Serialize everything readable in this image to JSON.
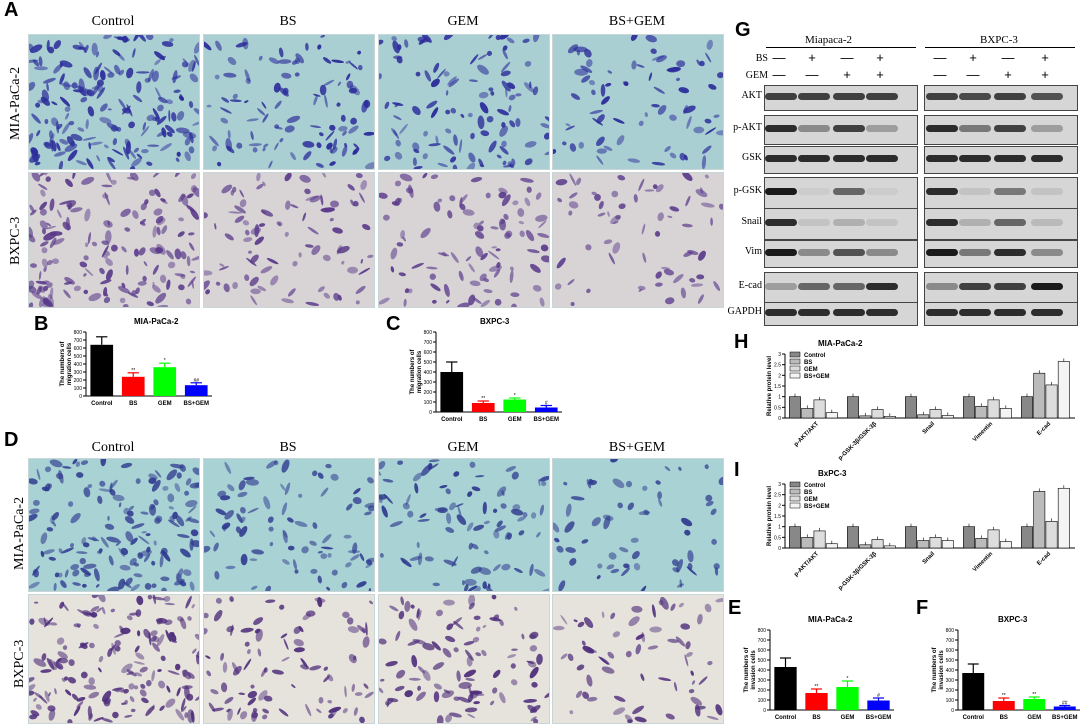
{
  "panel_labels": {
    "A": "A",
    "B": "B",
    "C": "C",
    "D": "D",
    "E": "E",
    "F": "F",
    "G": "G",
    "H": "H",
    "I": "I"
  },
  "micrograph_columns": [
    "Control",
    "BS",
    "GEM",
    "BS+GEM"
  ],
  "micrograph_rows": [
    "MIA-PaCa-2",
    "BXPC-3"
  ],
  "micro_style": {
    "A_top": {
      "bg": "#a9cfd2",
      "cell": "#2a2a9a",
      "density": 0.85
    },
    "A_bottom": {
      "bg": "#d8d4d6",
      "cell": "#5a3a8a",
      "density": 0.75
    },
    "D_top": {
      "bg": "#a8d2d4",
      "cell": "#2f3a8f",
      "density": 0.7
    },
    "D_bottom": {
      "bg": "#e6e2dc",
      "cell": "#4d2d7a",
      "density": 0.7
    }
  },
  "western_blot": {
    "cell_lines": [
      "Miapaca-2",
      "BXPC-3"
    ],
    "treatments": [
      {
        "name": "BS",
        "signs": [
          "—",
          "+",
          "—",
          "+"
        ]
      },
      {
        "name": "GEM",
        "signs": [
          "—",
          "—",
          "+",
          "+"
        ]
      }
    ],
    "proteins": [
      "AKT",
      "p-AKT",
      "GSK",
      "p-GSK",
      "Snail",
      "Vim",
      "E-cad",
      "GAPDH"
    ],
    "intensities": {
      "AKT": [
        [
          0.8,
          0.8,
          0.8,
          0.8
        ],
        [
          0.8,
          0.75,
          0.8,
          0.7
        ]
      ],
      "p-AKT": [
        [
          0.9,
          0.4,
          0.8,
          0.3
        ],
        [
          0.9,
          0.5,
          0.8,
          0.3
        ]
      ],
      "GSK": [
        [
          0.9,
          0.9,
          0.9,
          0.9
        ],
        [
          0.9,
          0.9,
          0.9,
          0.9
        ]
      ],
      "p-GSK": [
        [
          1.0,
          0.05,
          0.6,
          0.05
        ],
        [
          0.9,
          0.1,
          0.5,
          0.1
        ]
      ],
      "Snail": [
        [
          0.9,
          0.1,
          0.2,
          0.1
        ],
        [
          0.9,
          0.2,
          0.6,
          0.15
        ]
      ],
      "Vim": [
        [
          1.0,
          0.4,
          0.7,
          0.4
        ],
        [
          1.0,
          0.5,
          0.9,
          0.4
        ]
      ],
      "E-cad": [
        [
          0.3,
          0.6,
          0.6,
          0.9
        ],
        [
          0.4,
          0.8,
          0.8,
          1.0
        ]
      ],
      "GAPDH": [
        [
          0.9,
          0.9,
          0.9,
          0.9
        ],
        [
          0.9,
          0.9,
          0.9,
          0.9
        ]
      ]
    }
  },
  "chart_data": [
    {
      "id": "B",
      "type": "bar",
      "title": "MIA-PaCa-2",
      "ylabel": "The numbers of\nmigration cells",
      "categories": [
        "Control",
        "BS",
        "GEM",
        "BS+GEM"
      ],
      "values": [
        640,
        240,
        360,
        135
      ],
      "errors": [
        100,
        50,
        50,
        30
      ],
      "colors": [
        "#000000",
        "#ff0000",
        "#00ff00",
        "#0000ff"
      ],
      "ylim": [
        0,
        800
      ],
      "yticks": [
        0,
        100,
        200,
        300,
        400,
        500,
        600,
        700,
        800
      ],
      "annotations": [
        "",
        "**",
        "*",
        "##"
      ]
    },
    {
      "id": "C",
      "type": "bar",
      "title": "BXPC-3",
      "ylabel": "The numbers of\nmigration cells",
      "categories": [
        "Control",
        "BS",
        "GEM",
        "BS+GEM"
      ],
      "values": [
        400,
        90,
        125,
        45
      ],
      "errors": [
        100,
        20,
        15,
        20
      ],
      "colors": [
        "#000000",
        "#ff0000",
        "#00ff00",
        "#0000ff"
      ],
      "ylim": [
        0,
        800
      ],
      "yticks": [
        0,
        100,
        200,
        300,
        400,
        500,
        600,
        700,
        800
      ],
      "annotations": [
        "",
        "**",
        "*",
        "#"
      ]
    },
    {
      "id": "E",
      "type": "bar",
      "title": "MIA-PaCa-2",
      "ylabel": "The numbers of\ninvasion cells",
      "categories": [
        "Control",
        "BS",
        "GEM",
        "BS+GEM"
      ],
      "values": [
        430,
        170,
        230,
        95
      ],
      "errors": [
        90,
        40,
        60,
        25
      ],
      "colors": [
        "#000000",
        "#ff0000",
        "#00ff00",
        "#0000ff"
      ],
      "ylim": [
        0,
        800
      ],
      "yticks": [
        0,
        100,
        200,
        300,
        400,
        500,
        600,
        700,
        800
      ],
      "annotations": [
        "",
        "**",
        "*",
        "#"
      ]
    },
    {
      "id": "F",
      "type": "bar",
      "title": "BXPC-3",
      "ylabel": "The numbers of\ninvasion cells",
      "categories": [
        "Control",
        "BS",
        "GEM",
        "BS+GEM"
      ],
      "values": [
        370,
        90,
        110,
        35
      ],
      "errors": [
        90,
        30,
        20,
        10
      ],
      "colors": [
        "#000000",
        "#ff0000",
        "#00ff00",
        "#0000ff"
      ],
      "ylim": [
        0,
        800
      ],
      "yticks": [
        0,
        100,
        200,
        300,
        400,
        500,
        600,
        700,
        800
      ],
      "annotations": [
        "",
        "**",
        "**",
        "##"
      ]
    },
    {
      "id": "H",
      "type": "bar",
      "title": "MIA-PaCa-2",
      "ylabel": "Relative protein level",
      "categories": [
        "p-AKT/AKT",
        "p-GSK-3β/GSK-3β",
        "Snail",
        "Vimentin",
        "E-cad"
      ],
      "series": [
        {
          "name": "Control",
          "values": [
            1.0,
            1.0,
            1.0,
            1.0,
            1.0
          ]
        },
        {
          "name": "BS",
          "values": [
            0.45,
            0.1,
            0.15,
            0.55,
            2.1
          ]
        },
        {
          "name": "GEM",
          "values": [
            0.85,
            0.4,
            0.4,
            0.85,
            1.55
          ]
        },
        {
          "name": "BS+GEM",
          "values": [
            0.25,
            0.08,
            0.12,
            0.45,
            2.65
          ]
        }
      ],
      "ylim": [
        0,
        3
      ],
      "yticks": [
        0,
        0.5,
        1,
        1.5,
        2,
        2.5,
        3
      ]
    },
    {
      "id": "I",
      "type": "bar",
      "title": "BxPC-3",
      "ylabel": "Relative protein level",
      "categories": [
        "p-AKT/AKT",
        "p-GSK-3β/GSK-3β",
        "Snail",
        "Vimentin",
        "E-cad"
      ],
      "series": [
        {
          "name": "Control",
          "values": [
            1.0,
            1.0,
            1.0,
            1.0,
            1.0
          ]
        },
        {
          "name": "BS",
          "values": [
            0.5,
            0.15,
            0.35,
            0.45,
            2.65
          ]
        },
        {
          "name": "GEM",
          "values": [
            0.8,
            0.4,
            0.5,
            0.85,
            1.25
          ]
        },
        {
          "name": "BS+GEM",
          "values": [
            0.2,
            0.1,
            0.35,
            0.3,
            2.8
          ]
        }
      ],
      "ylim": [
        0,
        3
      ],
      "yticks": [
        0,
        0.5,
        1,
        1.5,
        2,
        2.5,
        3
      ]
    }
  ],
  "grouped_legend_patterns": [
    "#888888",
    "#bbbbbb",
    "#dddddd",
    "#f4f4f4"
  ]
}
